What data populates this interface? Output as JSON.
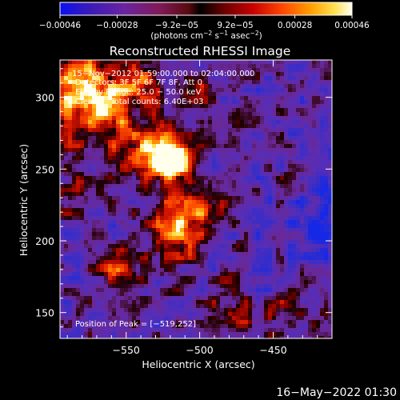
{
  "colorbar": {
    "tick_labels": [
      "−0.00046",
      "−0.00028",
      "−9.2e−05",
      "9.2e−05",
      "0.00028",
      "0.00046"
    ],
    "tick_values": [
      -0.00046,
      -0.00028,
      -9.2e-05,
      9.2e-05,
      0.00028,
      0.00046
    ],
    "range": [
      -0.00046,
      0.00046
    ],
    "units_main": "(photons cm",
    "units_exp1": "−2",
    "units_mid1": " s",
    "units_exp2": "−1",
    "units_mid2": " asec",
    "units_exp3": "−2",
    "units_close": ")"
  },
  "image": {
    "title": "Reconstructed RHESSI Image",
    "info_lines": [
      "15−Nov−2012 01:59:00.000 to 02:04:00.000",
      "Detectors: 3F 5F 6F 7F 8F, Att 0",
      "Energy Range: 25.0 − 50.0 keV",
      "Clean     Total counts: 6.40E+03"
    ],
    "peak_label": "Position of Peak = [−519,252]",
    "peak_position": [
      -519,
      252
    ],
    "x_range": [
      -595,
      -410
    ],
    "y_range": [
      132,
      326
    ],
    "x_ticks": [
      -550,
      -500,
      -450
    ],
    "x_tick_labels": [
      "−550",
      "−500",
      "−450"
    ],
    "y_ticks": [
      150,
      200,
      250,
      300
    ],
    "y_tick_labels": [
      "150",
      "200",
      "250",
      "300"
    ],
    "xlabel": "Heliocentric X (arcsec)",
    "ylabel": "Heliocentric Y (arcsec)"
  },
  "footer": {
    "timestamp": "16−May−2022 01:30"
  }
}
